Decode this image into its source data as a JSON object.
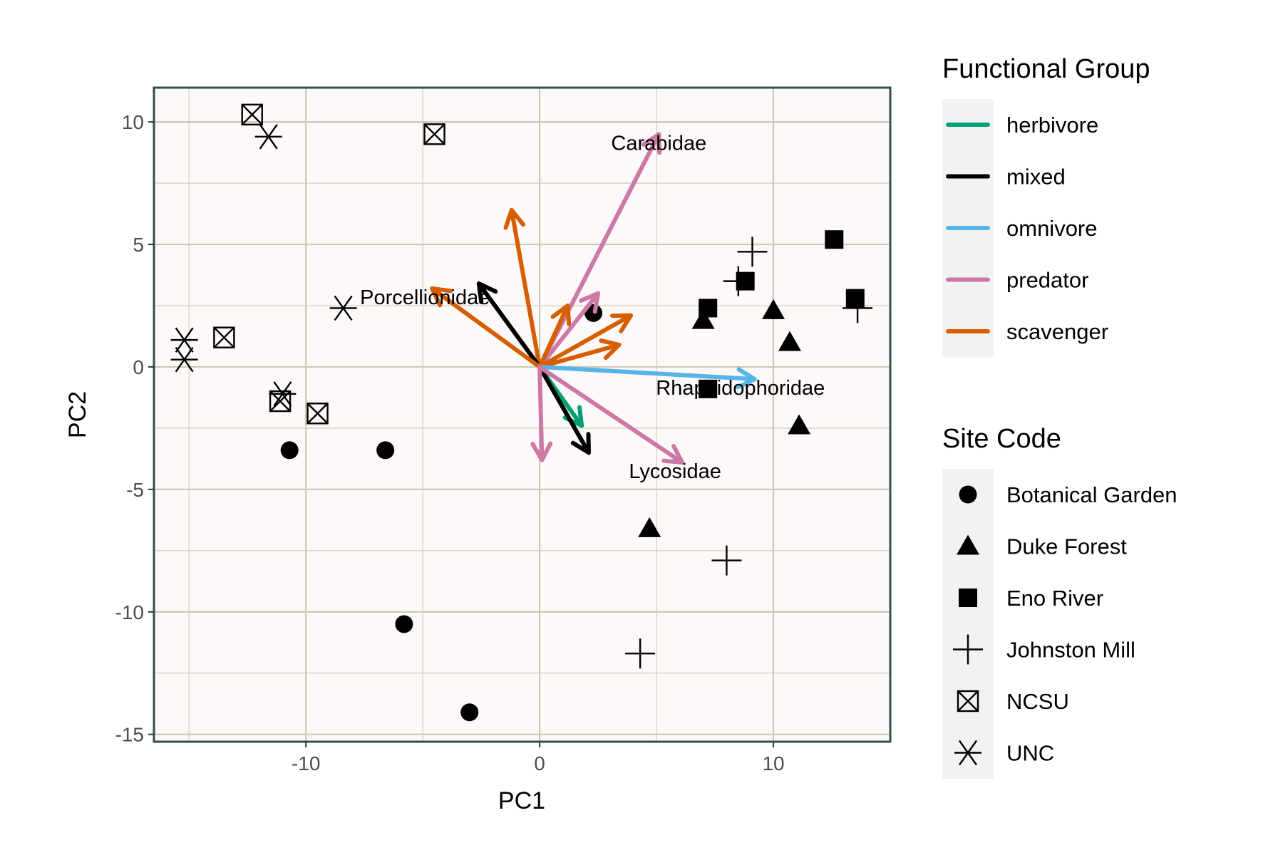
{
  "chart_data": {
    "type": "scatter",
    "subtype": "pca-biplot",
    "title": "",
    "xlabel": "PC1",
    "ylabel": "PC2",
    "xlim": [
      -16.5,
      15.0
    ],
    "ylim": [
      -15.3,
      11.4
    ],
    "x_ticks": [
      -10,
      0,
      10
    ],
    "x_tick_labels": [
      "-10",
      "0",
      "10"
    ],
    "y_ticks": [
      -15,
      -10,
      -5,
      0,
      5,
      10
    ],
    "y_tick_labels": [
      "-15",
      "-10",
      "-5",
      "0",
      "5",
      "10"
    ],
    "grid": true,
    "colors": {
      "herbivore": "#009E73",
      "mixed": "#000000",
      "omnivore": "#56B4E9",
      "predator": "#CC79A7",
      "scavenger": "#D55E00",
      "panel_background": "#FCF9F8",
      "panel_border": "#2F4F4F",
      "grid": "#CCC9B6",
      "legend_key_background": "#F2F2F2"
    },
    "legends": {
      "color": {
        "title": "Functional Group",
        "entries": [
          "herbivore",
          "mixed",
          "omnivore",
          "predator",
          "scavenger"
        ]
      },
      "shape": {
        "title": "Site Code",
        "entries": [
          {
            "label": "Botanical Garden",
            "shape": "circle"
          },
          {
            "label": "Duke Forest",
            "shape": "triangle"
          },
          {
            "label": "Eno River",
            "shape": "square"
          },
          {
            "label": "Johnston Mill",
            "shape": "plus"
          },
          {
            "label": "NCSU",
            "shape": "boxcross"
          },
          {
            "label": "UNC",
            "shape": "asterisk"
          }
        ]
      }
    },
    "vectors": [
      {
        "group": "predator",
        "x": 5.1,
        "y": 9.5,
        "label": "Carabidae"
      },
      {
        "group": "scavenger",
        "x": -1.2,
        "y": 6.4,
        "label": ""
      },
      {
        "group": "mixed",
        "x": -2.6,
        "y": 3.4,
        "label": ""
      },
      {
        "group": "scavenger",
        "x": -4.6,
        "y": 3.2,
        "label": "Porcellionidae"
      },
      {
        "group": "predator",
        "x": 2.5,
        "y": 3.0,
        "label": ""
      },
      {
        "group": "scavenger",
        "x": 1.2,
        "y": 2.5,
        "label": ""
      },
      {
        "group": "scavenger",
        "x": 3.9,
        "y": 2.1,
        "label": ""
      },
      {
        "group": "scavenger",
        "x": 3.4,
        "y": 0.9,
        "label": ""
      },
      {
        "group": "omnivore",
        "x": 9.2,
        "y": -0.5,
        "label": "Rhaphidophoridae"
      },
      {
        "group": "herbivore",
        "x": 1.8,
        "y": -2.4,
        "label": ""
      },
      {
        "group": "mixed",
        "x": 2.1,
        "y": -3.5,
        "label": ""
      },
      {
        "group": "predator",
        "x": 0.1,
        "y": -3.8,
        "label": ""
      },
      {
        "group": "predator",
        "x": 6.1,
        "y": -3.9,
        "label": "Lycosidae"
      }
    ],
    "points": [
      {
        "site": "Botanical Garden",
        "x": 2.3,
        "y": 2.2
      },
      {
        "site": "Botanical Garden",
        "x": -10.7,
        "y": -3.4
      },
      {
        "site": "Botanical Garden",
        "x": -6.6,
        "y": -3.4
      },
      {
        "site": "Botanical Garden",
        "x": -5.8,
        "y": -10.5
      },
      {
        "site": "Botanical Garden",
        "x": -3.0,
        "y": -14.1
      },
      {
        "site": "Duke Forest",
        "x": 10.0,
        "y": 2.3
      },
      {
        "site": "Duke Forest",
        "x": 7.0,
        "y": 1.9
      },
      {
        "site": "Duke Forest",
        "x": 10.7,
        "y": 1.0
      },
      {
        "site": "Duke Forest",
        "x": 11.1,
        "y": -2.4
      },
      {
        "site": "Duke Forest",
        "x": 4.7,
        "y": -6.6
      },
      {
        "site": "Eno River",
        "x": 12.6,
        "y": 5.2
      },
      {
        "site": "Eno River",
        "x": 8.8,
        "y": 3.5
      },
      {
        "site": "Eno River",
        "x": 13.5,
        "y": 2.8
      },
      {
        "site": "Eno River",
        "x": 7.2,
        "y": 2.4
      },
      {
        "site": "Eno River",
        "x": 7.2,
        "y": -0.9
      },
      {
        "site": "Johnston Mill",
        "x": 9.1,
        "y": 4.7
      },
      {
        "site": "Johnston Mill",
        "x": 8.5,
        "y": 3.5
      },
      {
        "site": "Johnston Mill",
        "x": 13.6,
        "y": 2.4
      },
      {
        "site": "Johnston Mill",
        "x": 8.0,
        "y": -7.9
      },
      {
        "site": "Johnston Mill",
        "x": 4.3,
        "y": -11.7
      },
      {
        "site": "NCSU",
        "x": -12.3,
        "y": 10.3
      },
      {
        "site": "NCSU",
        "x": -4.5,
        "y": 9.5
      },
      {
        "site": "NCSU",
        "x": -13.5,
        "y": 1.2
      },
      {
        "site": "NCSU",
        "x": -11.1,
        "y": -1.4
      },
      {
        "site": "NCSU",
        "x": -9.5,
        "y": -1.9
      },
      {
        "site": "UNC",
        "x": -11.6,
        "y": 9.4
      },
      {
        "site": "UNC",
        "x": -8.4,
        "y": 2.4
      },
      {
        "site": "UNC",
        "x": -15.2,
        "y": 1.1
      },
      {
        "site": "UNC",
        "x": -15.2,
        "y": 0.3
      },
      {
        "site": "UNC",
        "x": -11.0,
        "y": -1.1
      }
    ]
  }
}
